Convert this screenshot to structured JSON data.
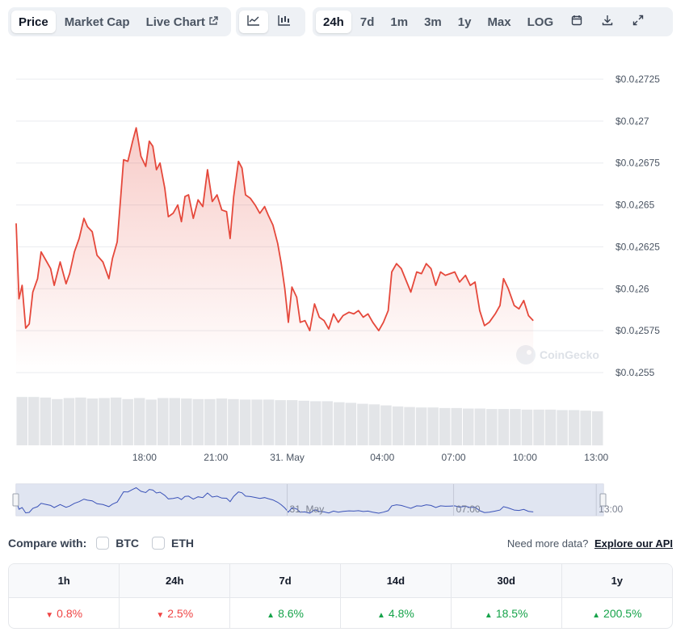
{
  "tabs": {
    "price": "Price",
    "market_cap": "Market Cap",
    "live_chart": "Live Chart",
    "ranges": [
      "24h",
      "7d",
      "1m",
      "3m",
      "1y",
      "Max",
      "LOG"
    ],
    "active_range": "24h"
  },
  "icons": {
    "external": "external-link-icon",
    "line": "line-chart-icon",
    "candle": "candlestick-icon",
    "calendar": "calendar-icon",
    "download": "download-icon",
    "expand": "expand-icon"
  },
  "colors": {
    "line": "#e5483b",
    "volume": "#e3e5e8",
    "navigator_fill": "#dde2ef",
    "navigator_line": "#3a52b8"
  },
  "watermark": "CoinGecko",
  "chart_data": {
    "type": "line",
    "y_ticks": [
      {
        "value": 2.725e-08,
        "label": "$0.0₄2725"
      },
      {
        "value": 2.7e-08,
        "label": "$0.0₄27"
      },
      {
        "value": 2.675e-08,
        "label": "$0.0₄2675"
      },
      {
        "value": 2.65e-08,
        "label": "$0.0₄265"
      },
      {
        "value": 2.625e-08,
        "label": "$0.0₄2625"
      },
      {
        "value": 2.6e-08,
        "label": "$0.0₄26"
      },
      {
        "value": 2.575e-08,
        "label": "$0.0₄2575"
      },
      {
        "value": 2.55e-08,
        "label": "$0.0₄255"
      }
    ],
    "ylim": [
      2.55e-08,
      2.725e-08
    ],
    "x_ticks": [
      {
        "t": 4,
        "label": "18:00"
      },
      {
        "t": 7,
        "label": "21:00"
      },
      {
        "t": 10,
        "label": "31. May"
      },
      {
        "t": 14,
        "label": "04:00"
      },
      {
        "t": 17,
        "label": "07:00"
      },
      {
        "t": 20,
        "label": "10:00"
      },
      {
        "t": 23,
        "label": "13:00"
      }
    ],
    "navigator_labels": [
      {
        "t": 10,
        "label": "31. May"
      },
      {
        "t": 17,
        "label": "07:00"
      },
      {
        "t": 23,
        "label": "13:00"
      }
    ],
    "xlim": [
      -1.4,
      23.3
    ],
    "price": [
      [
        -1.4,
        2.639
      ],
      [
        -1.28,
        2.594
      ],
      [
        -1.15,
        2.602
      ],
      [
        -1.0,
        2.5765
      ],
      [
        -0.85,
        2.579
      ],
      [
        -0.7,
        2.598
      ],
      [
        -0.5,
        2.606
      ],
      [
        -0.35,
        2.622
      ],
      [
        -0.15,
        2.617
      ],
      [
        0.05,
        2.612
      ],
      [
        0.2,
        2.602
      ],
      [
        0.45,
        2.616
      ],
      [
        0.7,
        2.603
      ],
      [
        0.85,
        2.609
      ],
      [
        1.05,
        2.622
      ],
      [
        1.25,
        2.63
      ],
      [
        1.45,
        2.642
      ],
      [
        1.6,
        2.637
      ],
      [
        1.8,
        2.634
      ],
      [
        2.0,
        2.62
      ],
      [
        2.25,
        2.616
      ],
      [
        2.5,
        2.606
      ],
      [
        2.65,
        2.618
      ],
      [
        2.85,
        2.628
      ],
      [
        3.0,
        2.655
      ],
      [
        3.12,
        2.677
      ],
      [
        3.3,
        2.676
      ],
      [
        3.5,
        2.688
      ],
      [
        3.65,
        2.696
      ],
      [
        3.85,
        2.679
      ],
      [
        4.05,
        2.673
      ],
      [
        4.2,
        2.688
      ],
      [
        4.35,
        2.685
      ],
      [
        4.5,
        2.671
      ],
      [
        4.65,
        2.675
      ],
      [
        4.85,
        2.66
      ],
      [
        5.0,
        2.643
      ],
      [
        5.2,
        2.645
      ],
      [
        5.4,
        2.65
      ],
      [
        5.55,
        2.64
      ],
      [
        5.7,
        2.655
      ],
      [
        5.85,
        2.656
      ],
      [
        6.05,
        2.642
      ],
      [
        6.25,
        2.653
      ],
      [
        6.45,
        2.649
      ],
      [
        6.65,
        2.671
      ],
      [
        6.85,
        2.652
      ],
      [
        7.05,
        2.656
      ],
      [
        7.25,
        2.647
      ],
      [
        7.45,
        2.646
      ],
      [
        7.6,
        2.63
      ],
      [
        7.75,
        2.655
      ],
      [
        7.95,
        2.676
      ],
      [
        8.1,
        2.672
      ],
      [
        8.25,
        2.656
      ],
      [
        8.45,
        2.654
      ],
      [
        8.65,
        2.65
      ],
      [
        8.85,
        2.645
      ],
      [
        9.05,
        2.649
      ],
      [
        9.2,
        2.644
      ],
      [
        9.4,
        2.638
      ],
      [
        9.6,
        2.627
      ],
      [
        9.75,
        2.615
      ],
      [
        9.9,
        2.6
      ],
      [
        10.05,
        2.58
      ],
      [
        10.2,
        2.601
      ],
      [
        10.4,
        2.595
      ],
      [
        10.55,
        2.58
      ],
      [
        10.75,
        2.581
      ],
      [
        10.95,
        2.575
      ],
      [
        11.15,
        2.591
      ],
      [
        11.35,
        2.583
      ],
      [
        11.55,
        2.581
      ],
      [
        11.75,
        2.576
      ],
      [
        11.95,
        2.585
      ],
      [
        12.15,
        2.58
      ],
      [
        12.35,
        2.584
      ],
      [
        12.6,
        2.586
      ],
      [
        12.8,
        2.585
      ],
      [
        13.0,
        2.587
      ],
      [
        13.2,
        2.583
      ],
      [
        13.4,
        2.585
      ],
      [
        13.6,
        2.58
      ],
      [
        13.85,
        2.575
      ],
      [
        14.05,
        2.58
      ],
      [
        14.25,
        2.587
      ],
      [
        14.4,
        2.61
      ],
      [
        14.6,
        2.615
      ],
      [
        14.8,
        2.612
      ],
      [
        15.0,
        2.605
      ],
      [
        15.2,
        2.598
      ],
      [
        15.45,
        2.61
      ],
      [
        15.65,
        2.609
      ],
      [
        15.85,
        2.615
      ],
      [
        16.05,
        2.612
      ],
      [
        16.25,
        2.602
      ],
      [
        16.45,
        2.61
      ],
      [
        16.65,
        2.608
      ],
      [
        16.85,
        2.609
      ],
      [
        17.05,
        2.61
      ],
      [
        17.25,
        2.604
      ],
      [
        17.5,
        2.608
      ],
      [
        17.7,
        2.602
      ],
      [
        17.9,
        2.604
      ],
      [
        18.1,
        2.587
      ],
      [
        18.3,
        2.578
      ],
      [
        18.5,
        2.58
      ],
      [
        18.75,
        2.585
      ],
      [
        18.95,
        2.59
      ],
      [
        19.1,
        2.606
      ],
      [
        19.3,
        2.6
      ],
      [
        19.55,
        2.59
      ],
      [
        19.75,
        2.588
      ],
      [
        19.95,
        2.593
      ],
      [
        20.15,
        2.584
      ],
      [
        20.35,
        2.581
      ]
    ],
    "volume": [
      0.92,
      0.92,
      0.91,
      0.88,
      0.9,
      0.91,
      0.89,
      0.9,
      0.91,
      0.88,
      0.9,
      0.87,
      0.9,
      0.9,
      0.89,
      0.88,
      0.88,
      0.89,
      0.88,
      0.87,
      0.87,
      0.87,
      0.86,
      0.86,
      0.85,
      0.84,
      0.84,
      0.82,
      0.81,
      0.79,
      0.78,
      0.76,
      0.74,
      0.73,
      0.72,
      0.72,
      0.71,
      0.71,
      0.7,
      0.7,
      0.69,
      0.69,
      0.69,
      0.68,
      0.68,
      0.68,
      0.67,
      0.67,
      0.66,
      0.65
    ]
  },
  "compare": {
    "label": "Compare with:",
    "options": [
      "BTC",
      "ETH"
    ],
    "api_text": "Need more data?",
    "api_link": "Explore our API"
  },
  "performance": [
    {
      "period": "1h",
      "change": "0.8%",
      "dir": "down"
    },
    {
      "period": "24h",
      "change": "2.5%",
      "dir": "down"
    },
    {
      "period": "7d",
      "change": "8.6%",
      "dir": "up"
    },
    {
      "period": "14d",
      "change": "4.8%",
      "dir": "up"
    },
    {
      "period": "30d",
      "change": "18.5%",
      "dir": "up"
    },
    {
      "period": "1y",
      "change": "200.5%",
      "dir": "up"
    }
  ]
}
